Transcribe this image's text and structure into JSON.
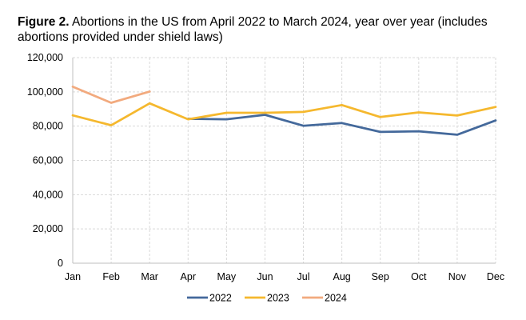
{
  "caption": {
    "label": "Figure 2.",
    "text": " Abortions in the US from April 2022 to March 2024, year over year (includes abortions provided under shield laws)"
  },
  "chart_data": {
    "type": "line",
    "title": "Figure 2. Abortions in the US from April 2022 to March 2024, year over year (includes abortions provided under shield laws)",
    "categories": [
      "Jan",
      "Feb",
      "Mar",
      "Apr",
      "May",
      "Jun",
      "Jul",
      "Aug",
      "Sep",
      "Oct",
      "Nov",
      "Dec"
    ],
    "ylim": [
      0,
      120000
    ],
    "yticks": [
      0,
      20000,
      40000,
      60000,
      80000,
      100000,
      120000
    ],
    "ytick_labels": [
      "0",
      "20,000",
      "40,000",
      "60,000",
      "80,000",
      "100,000",
      "120,000"
    ],
    "grid": true,
    "legend_position": "bottom",
    "series": [
      {
        "name": "2022",
        "color": "#44699b",
        "x": [
          "Apr",
          "May",
          "Jun",
          "Jul",
          "Aug",
          "Sep",
          "Oct",
          "Nov",
          "Dec"
        ],
        "values": [
          84300,
          84000,
          86600,
          80200,
          81800,
          76600,
          77000,
          75000,
          83300
        ]
      },
      {
        "name": "2023",
        "color": "#f5b82e",
        "x": [
          "Jan",
          "Feb",
          "Mar",
          "Apr",
          "May",
          "Jun",
          "Jul",
          "Aug",
          "Sep",
          "Oct",
          "Nov",
          "Dec"
        ],
        "values": [
          86300,
          80500,
          93300,
          84000,
          87800,
          87800,
          88300,
          92300,
          85300,
          88000,
          86200,
          91200
        ]
      },
      {
        "name": "2024",
        "color": "#f2aa7e",
        "x": [
          "Jan",
          "Feb",
          "Mar"
        ],
        "values": [
          103000,
          93600,
          100200
        ]
      }
    ]
  }
}
